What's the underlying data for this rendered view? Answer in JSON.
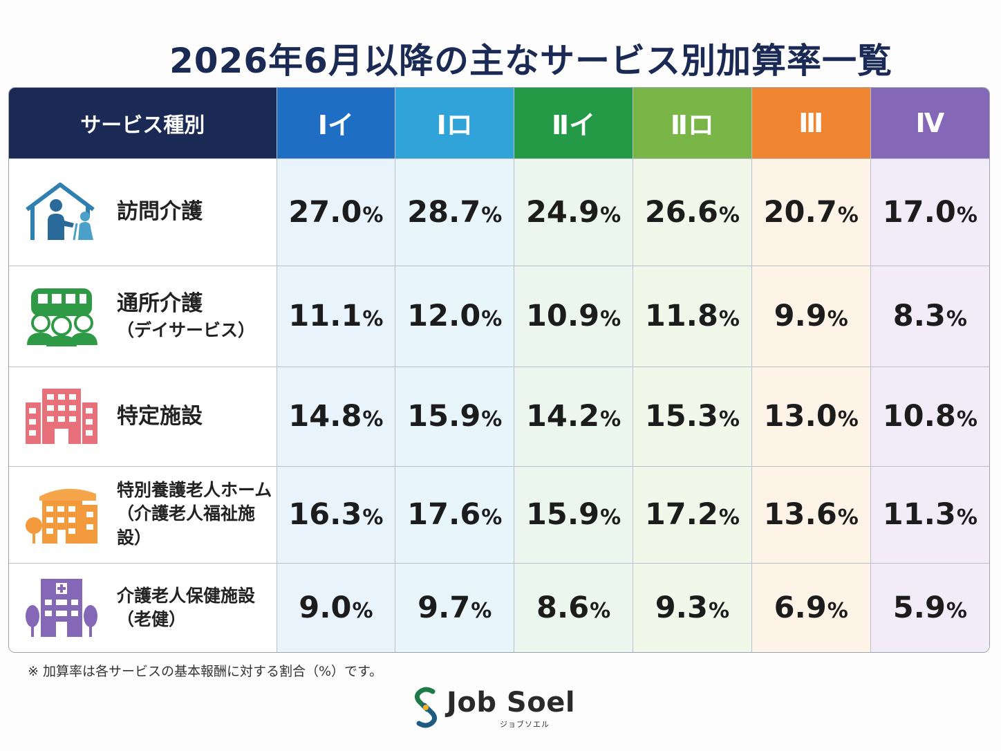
{
  "title": "2026年6月以降の主なサービス別加算率一覧",
  "table": {
    "service_header": "サービス種別",
    "columns": [
      "Ⅰイ",
      "Ⅰロ",
      "Ⅱイ",
      "Ⅱロ",
      "Ⅲ",
      "Ⅳ"
    ],
    "column_colors": [
      "#1e6fc4",
      "#30a3d9",
      "#249a46",
      "#7ab548",
      "#f08531",
      "#8567b8"
    ],
    "pct_symbol": "%",
    "rows": [
      {
        "icon": "home-care-icon",
        "label": "訪問介護",
        "sub": "",
        "values": [
          "27.0",
          "28.7",
          "24.9",
          "26.6",
          "20.7",
          "17.0"
        ]
      },
      {
        "icon": "day-service-bus-icon",
        "label": "通所介護",
        "sub": "（デイサービス）",
        "values": [
          "11.1",
          "12.0",
          "10.9",
          "11.8",
          "9.9",
          "8.3"
        ]
      },
      {
        "icon": "facility-building-icon",
        "label": "特定施設",
        "sub": "",
        "values": [
          "14.8",
          "15.9",
          "14.2",
          "15.3",
          "13.0",
          "10.8"
        ]
      },
      {
        "icon": "nursing-home-icon",
        "label": "特別養護老人ホーム",
        "sub": "（介護老人福祉施設）",
        "values": [
          "16.3",
          "17.6",
          "15.9",
          "17.2",
          "13.6",
          "11.3"
        ]
      },
      {
        "icon": "health-facility-icon",
        "label": "介護老人保健施設",
        "sub": "（老健）",
        "values": [
          "9.0",
          "9.7",
          "8.6",
          "9.3",
          "6.9",
          "5.9"
        ]
      }
    ]
  },
  "note": "※ 加算率は各サービスの基本報酬に対する割合（%）です。",
  "logo": {
    "name": "Job Soel",
    "kana": "ジョブソエル",
    "icon": "job-soel-logo-icon"
  }
}
